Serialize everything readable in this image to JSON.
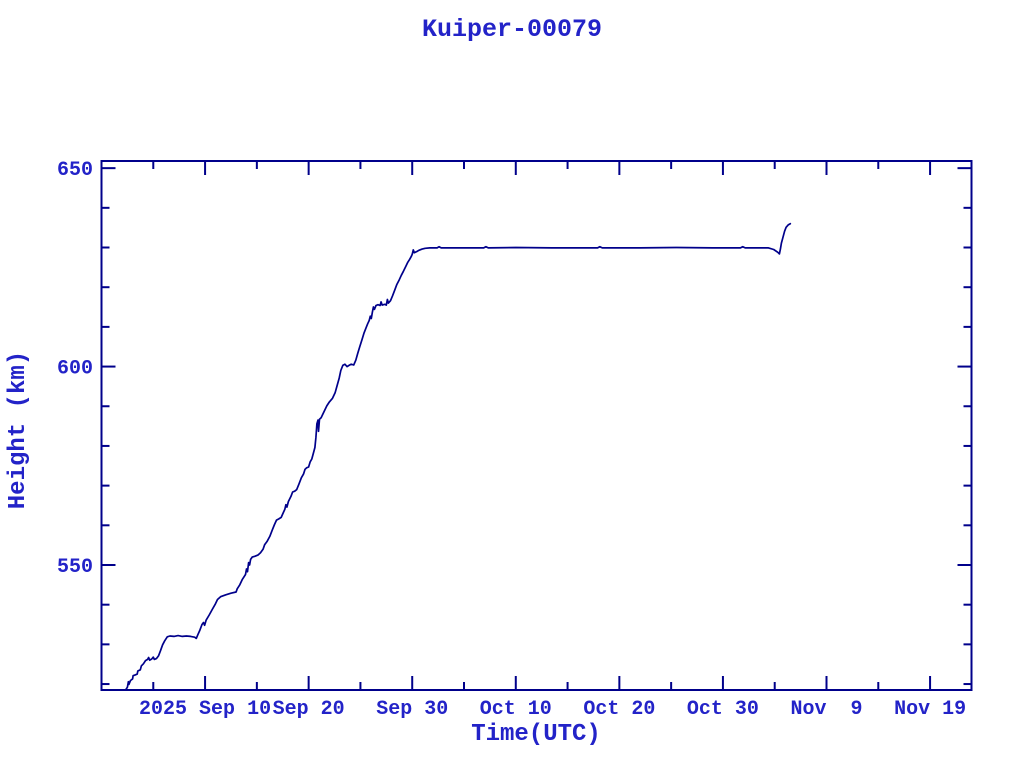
{
  "page": {
    "background": "#ffffff"
  },
  "chart_data": {
    "type": "line",
    "title": "Kuiper-00079",
    "xlabel": "Time(UTC)",
    "ylabel": "Height (km)",
    "grid": false,
    "legend": "none",
    "colors": {
      "line": "#00008b",
      "frame": "#00008b",
      "text": "#2323c8"
    },
    "x_axis": {
      "unit": "days",
      "domain_days": [
        0,
        84
      ],
      "major_ticks": [
        {
          "d": 10,
          "label": "2025 Sep 10"
        },
        {
          "d": 20,
          "label": "Sep 20"
        },
        {
          "d": 30,
          "label": "Sep 30"
        },
        {
          "d": 40,
          "label": "Oct 10"
        },
        {
          "d": 50,
          "label": "Oct 20"
        },
        {
          "d": 60,
          "label": "Oct 30"
        },
        {
          "d": 70,
          "label": "Nov  9"
        },
        {
          "d": 80,
          "label": "Nov 19"
        }
      ],
      "minor_ticks": [
        5,
        15,
        25,
        35,
        45,
        55,
        65,
        75
      ]
    },
    "y_axis": {
      "ylim": [
        518.5,
        651.8
      ],
      "major_ticks": [
        {
          "v": 550,
          "label": "550"
        },
        {
          "v": 600,
          "label": "600"
        },
        {
          "v": 650,
          "label": "650"
        }
      ],
      "minor_ticks": [
        520,
        530,
        540,
        560,
        570,
        580,
        590,
        610,
        620,
        630,
        640
      ]
    },
    "series": [
      {
        "name": "height",
        "points": [
          [
            2.35,
            518.6
          ],
          [
            2.5,
            519.2
          ],
          [
            2.6,
            520.6
          ],
          [
            2.65,
            519.9
          ],
          [
            2.8,
            520.9
          ],
          [
            3.0,
            521.3
          ],
          [
            3.05,
            522.1
          ],
          [
            3.25,
            522.3
          ],
          [
            3.45,
            522.5
          ],
          [
            3.5,
            523.3
          ],
          [
            3.75,
            523.6
          ],
          [
            3.85,
            524.6
          ],
          [
            4.05,
            525.1
          ],
          [
            4.25,
            525.9
          ],
          [
            4.45,
            526.2
          ],
          [
            4.55,
            526.7
          ],
          [
            4.65,
            526.0
          ],
          [
            4.85,
            526.3
          ],
          [
            5.0,
            526.8
          ],
          [
            5.1,
            526.2
          ],
          [
            5.3,
            526.4
          ],
          [
            5.5,
            527.1
          ],
          [
            5.7,
            528.4
          ],
          [
            5.9,
            529.9
          ],
          [
            6.1,
            530.9
          ],
          [
            6.35,
            531.9
          ],
          [
            6.6,
            532.1
          ],
          [
            7.0,
            532.0
          ],
          [
            7.4,
            532.2
          ],
          [
            7.8,
            532.0
          ],
          [
            8.2,
            532.1
          ],
          [
            8.6,
            532.0
          ],
          [
            9.0,
            531.8
          ],
          [
            9.15,
            531.5
          ],
          [
            9.3,
            532.4
          ],
          [
            9.5,
            533.6
          ],
          [
            9.7,
            535.0
          ],
          [
            9.85,
            535.5
          ],
          [
            9.95,
            534.8
          ],
          [
            10.1,
            536.1
          ],
          [
            10.4,
            537.4
          ],
          [
            10.7,
            538.8
          ],
          [
            11.0,
            540.2
          ],
          [
            11.2,
            541.3
          ],
          [
            11.5,
            542.0
          ],
          [
            12.0,
            542.5
          ],
          [
            12.5,
            542.9
          ],
          [
            13.0,
            543.2
          ],
          [
            13.1,
            544.0
          ],
          [
            13.35,
            545.0
          ],
          [
            13.6,
            546.4
          ],
          [
            13.9,
            547.6
          ],
          [
            14.0,
            549.0
          ],
          [
            14.1,
            548.3
          ],
          [
            14.2,
            550.6
          ],
          [
            14.3,
            550.0
          ],
          [
            14.4,
            551.4
          ],
          [
            14.55,
            552.0
          ],
          [
            14.8,
            552.2
          ],
          [
            15.1,
            552.5
          ],
          [
            15.35,
            553.1
          ],
          [
            15.6,
            554.0
          ],
          [
            15.75,
            555.1
          ],
          [
            16.0,
            556.0
          ],
          [
            16.25,
            557.2
          ],
          [
            16.5,
            558.9
          ],
          [
            16.7,
            560.2
          ],
          [
            16.9,
            561.3
          ],
          [
            17.1,
            561.6
          ],
          [
            17.35,
            562.0
          ],
          [
            17.55,
            563.2
          ],
          [
            17.7,
            564.0
          ],
          [
            17.8,
            565.2
          ],
          [
            17.9,
            564.6
          ],
          [
            18.05,
            566.0
          ],
          [
            18.3,
            567.3
          ],
          [
            18.45,
            568.4
          ],
          [
            18.65,
            568.6
          ],
          [
            18.85,
            569.0
          ],
          [
            19.05,
            570.3
          ],
          [
            19.3,
            572.0
          ],
          [
            19.5,
            572.9
          ],
          [
            19.65,
            574.1
          ],
          [
            19.8,
            574.5
          ],
          [
            20.0,
            574.7
          ],
          [
            20.15,
            576.0
          ],
          [
            20.3,
            576.7
          ],
          [
            20.45,
            578.1
          ],
          [
            20.6,
            579.6
          ],
          [
            20.7,
            582.1
          ],
          [
            20.8,
            585.6
          ],
          [
            20.9,
            586.5
          ],
          [
            20.95,
            583.7
          ],
          [
            21.05,
            586.7
          ],
          [
            21.2,
            587.1
          ],
          [
            21.35,
            587.9
          ],
          [
            21.55,
            589.0
          ],
          [
            21.75,
            590.1
          ],
          [
            22.0,
            591.1
          ],
          [
            22.3,
            592.0
          ],
          [
            22.55,
            593.4
          ],
          [
            22.75,
            595.2
          ],
          [
            22.95,
            597.1
          ],
          [
            23.1,
            599.0
          ],
          [
            23.3,
            600.3
          ],
          [
            23.5,
            600.6
          ],
          [
            23.7,
            600.0
          ],
          [
            23.9,
            600.3
          ],
          [
            24.1,
            600.6
          ],
          [
            24.35,
            600.4
          ],
          [
            24.55,
            601.6
          ],
          [
            24.75,
            603.4
          ],
          [
            24.95,
            605.1
          ],
          [
            25.15,
            606.8
          ],
          [
            25.35,
            608.5
          ],
          [
            25.55,
            609.8
          ],
          [
            25.7,
            610.8
          ],
          [
            25.85,
            611.6
          ],
          [
            25.95,
            612.7
          ],
          [
            26.05,
            612.1
          ],
          [
            26.15,
            613.6
          ],
          [
            26.25,
            615.0
          ],
          [
            26.35,
            614.4
          ],
          [
            26.5,
            615.4
          ],
          [
            26.7,
            615.6
          ],
          [
            26.9,
            615.4
          ],
          [
            27.0,
            616.3
          ],
          [
            27.1,
            615.5
          ],
          [
            27.35,
            615.7
          ],
          [
            27.5,
            615.5
          ],
          [
            27.6,
            616.9
          ],
          [
            27.7,
            616.0
          ],
          [
            27.9,
            616.6
          ],
          [
            28.1,
            617.8
          ],
          [
            28.3,
            619.2
          ],
          [
            28.5,
            620.6
          ],
          [
            28.75,
            621.9
          ],
          [
            28.95,
            623.0
          ],
          [
            29.15,
            624.0
          ],
          [
            29.35,
            625.1
          ],
          [
            29.55,
            626.2
          ],
          [
            29.75,
            627.0
          ],
          [
            29.9,
            627.7
          ],
          [
            30.0,
            628.3
          ],
          [
            30.1,
            629.4
          ],
          [
            30.2,
            628.7
          ],
          [
            30.45,
            629.0
          ],
          [
            30.65,
            629.3
          ],
          [
            30.95,
            629.6
          ],
          [
            31.25,
            629.8
          ],
          [
            31.7,
            629.9
          ],
          [
            32.4,
            629.9
          ],
          [
            32.6,
            630.2
          ],
          [
            32.8,
            629.9
          ],
          [
            34.0,
            629.9
          ],
          [
            36.9,
            629.9
          ],
          [
            37.1,
            630.2
          ],
          [
            37.35,
            629.9
          ],
          [
            40.0,
            630.0
          ],
          [
            43.5,
            629.9
          ],
          [
            47.9,
            629.9
          ],
          [
            48.1,
            630.2
          ],
          [
            48.35,
            629.9
          ],
          [
            52.0,
            629.9
          ],
          [
            55.5,
            630.0
          ],
          [
            59.0,
            629.9
          ],
          [
            61.7,
            629.9
          ],
          [
            61.9,
            630.2
          ],
          [
            62.15,
            629.9
          ],
          [
            64.4,
            629.9
          ],
          [
            64.9,
            629.5
          ],
          [
            65.3,
            628.8
          ],
          [
            65.45,
            628.4
          ],
          [
            65.55,
            629.6
          ],
          [
            65.65,
            631.1
          ],
          [
            65.8,
            632.6
          ],
          [
            65.95,
            634.1
          ],
          [
            66.1,
            635.1
          ],
          [
            66.3,
            635.7
          ],
          [
            66.5,
            636.0
          ]
        ]
      }
    ]
  }
}
